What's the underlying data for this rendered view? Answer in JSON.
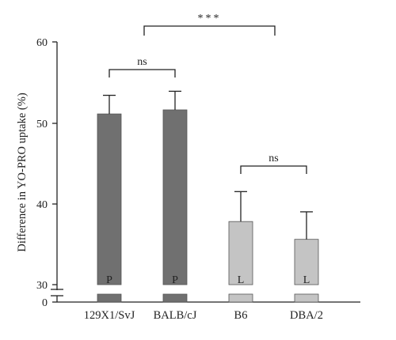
{
  "chart_data": {
    "type": "bar",
    "ylabel": "Difference in YO-PRO uptake (%)",
    "ylim": [
      30,
      60
    ],
    "y_break": true,
    "yticks": [
      "0",
      "30",
      "40",
      "50",
      "60"
    ],
    "categories": [
      "129X1/SvJ",
      "BALB/cJ",
      "B6",
      "DBA/2"
    ],
    "values": [
      51.1,
      51.6,
      37.8,
      35.6
    ],
    "errors": [
      2.3,
      2.3,
      3.7,
      3.4
    ],
    "bar_labels": [
      "P",
      "P",
      "L",
      "L"
    ],
    "bar_colors": [
      "#707070",
      "#707070",
      "#c4c4c4",
      "#c4c4c4"
    ],
    "comparisons": [
      {
        "label": "ns",
        "from": 0,
        "to": 1
      },
      {
        "label": "ns",
        "from": 2,
        "to": 3
      },
      {
        "label": "***",
        "from": 0.55,
        "to": 2.55
      }
    ]
  }
}
